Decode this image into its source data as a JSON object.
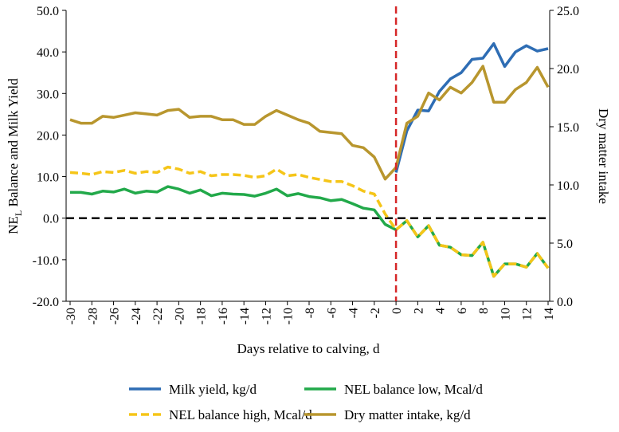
{
  "chart_data": {
    "type": "line",
    "ylabel": [
      "NE",
      "L",
      " Balance and Milk Yield"
    ],
    "y2label": "Dry matter intake",
    "xlabel": "Days relative to calving, d",
    "x": [
      -30,
      -29,
      -28,
      -27,
      -26,
      -25,
      -24,
      -23,
      -22,
      -21,
      -20,
      -19,
      -18,
      -17,
      -16,
      -15,
      -14,
      -13,
      -12,
      -11,
      -10,
      -9,
      -8,
      -7,
      -6,
      -5,
      -4,
      -3,
      -2,
      -1,
      0,
      1,
      2,
      3,
      4,
      5,
      6,
      7,
      8,
      9,
      10,
      11,
      12,
      13,
      14
    ],
    "xlim": [
      -30,
      14
    ],
    "xticks": [
      -30,
      -28,
      -26,
      -24,
      -22,
      -20,
      -18,
      -16,
      -14,
      -12,
      -10,
      -8,
      -6,
      -4,
      -2,
      0,
      2,
      4,
      6,
      8,
      10,
      12,
      14
    ],
    "ylim": [
      -20,
      50
    ],
    "yticks": [
      {
        "value": -20,
        "label": "-20.0"
      },
      {
        "value": -10,
        "label": "-10.0"
      },
      {
        "value": 0,
        "label": "0.0"
      },
      {
        "value": 10,
        "label": "10.0"
      },
      {
        "value": 20,
        "label": "20.0"
      },
      {
        "value": 30,
        "label": "30.0"
      },
      {
        "value": 40,
        "label": "40.0"
      },
      {
        "value": 50,
        "label": "50.0"
      }
    ],
    "y2lim": [
      0,
      25
    ],
    "y2ticks": [
      {
        "value": 0,
        "label": "0.0"
      },
      {
        "value": 5,
        "label": "5.0"
      },
      {
        "value": 10,
        "label": "10.0"
      },
      {
        "value": 15,
        "label": "15.0"
      },
      {
        "value": 20,
        "label": "20.0"
      },
      {
        "value": 25,
        "label": "25.0"
      }
    ],
    "hline": {
      "value": 0,
      "color": "#000000"
    },
    "vline": {
      "value": 0,
      "color": "#d62728"
    },
    "series": [
      {
        "name": "NEL balance low, Mcal/d",
        "color": "#22a94a",
        "dash": false,
        "values": [
          6.2,
          6.2,
          5.8,
          6.5,
          6.3,
          7,
          6,
          6.5,
          6.3,
          7.6,
          7,
          6,
          6.8,
          5.4,
          6,
          5.8,
          5.7,
          5.3,
          6,
          7,
          5.4,
          5.9,
          5.2,
          4.9,
          4.2,
          4.5,
          3.5,
          2.4,
          2,
          -1.5,
          -2.8,
          -0.6,
          -4.5,
          -1.8,
          -6.5,
          -7,
          -8.8,
          -9,
          -5.8,
          -14,
          -11,
          -11,
          -11.8,
          -8.5,
          -12
        ]
      },
      {
        "name": "NEL balance high, Mcal/d",
        "color": "#f5c518",
        "dash": true,
        "values": [
          11,
          10.8,
          10.5,
          11.2,
          11,
          11.5,
          10.8,
          11.2,
          11,
          12.3,
          11.8,
          10.8,
          11.2,
          10.2,
          10.5,
          10.5,
          10.3,
          9.8,
          10.2,
          11.8,
          10.2,
          10.5,
          9.8,
          9.3,
          8.8,
          8.8,
          7.8,
          6.5,
          5.8,
          1,
          -2.8,
          -0.6,
          -4.5,
          -1.8,
          -6.5,
          -7,
          -8.8,
          -9,
          -5.8,
          -14,
          -11,
          -11,
          -11.8,
          -8.5,
          -12
        ]
      },
      {
        "name": "Milk yield, kg/d",
        "color": "#2e6db4",
        "dash": false,
        "values": [
          null,
          null,
          null,
          null,
          null,
          null,
          null,
          null,
          null,
          null,
          null,
          null,
          null,
          null,
          null,
          null,
          null,
          null,
          null,
          null,
          null,
          null,
          null,
          null,
          null,
          null,
          null,
          null,
          null,
          null,
          11,
          21,
          26,
          25.8,
          30.5,
          33.5,
          35,
          38.2,
          38.5,
          42,
          36.5,
          40,
          41.5,
          40.2,
          40.8
        ]
      },
      {
        "name": "Dry matter intake, kg/d",
        "color": "#b8962e",
        "dash": false,
        "axis": "y2",
        "values": [
          15.6,
          15.3,
          15.3,
          15.9,
          15.8,
          16,
          16.2,
          16.1,
          16,
          16.4,
          16.5,
          15.8,
          15.9,
          15.9,
          15.6,
          15.6,
          15.2,
          15.2,
          15.9,
          16.4,
          16,
          15.6,
          15.3,
          14.6,
          14.5,
          14.4,
          13.4,
          13.2,
          12.4,
          10.5,
          11.5,
          15.3,
          15.9,
          17.9,
          17.3,
          18.4,
          17.9,
          18.8,
          20.2,
          17.1,
          17.1,
          18.2,
          18.8,
          20.1,
          18.4
        ]
      }
    ],
    "legend_order": [
      2,
      0,
      1,
      3
    ]
  }
}
